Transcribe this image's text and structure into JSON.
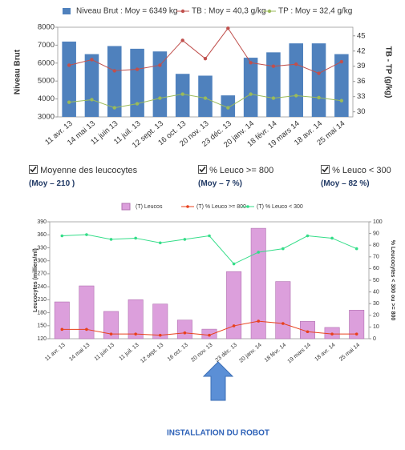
{
  "chart_data": [
    {
      "type": "combo",
      "categories": [
        "11 avr. 13",
        "14 mai 13",
        "11 juin 13",
        "11 juil. 13",
        "12 sept. 13",
        "16 oct. 13",
        "20 nov. 13",
        "23 déc. 13",
        "20 janv. 14",
        "18 févr. 14",
        "19 mars 14",
        "18 avr. 14",
        "25 mai 14"
      ],
      "y_label": "Niveau Brut",
      "y2_label": "TB - TP (g/kg)",
      "ylim": [
        3000,
        8000
      ],
      "yticks": [
        3000,
        4000,
        5000,
        6000,
        7000,
        8000
      ],
      "y2lim": [
        29,
        46.7
      ],
      "y2ticks": [
        30,
        33,
        36,
        39,
        42,
        45
      ],
      "grid": false,
      "series": [
        {
          "name": "Niveau Brut : Moy = 6349 kg",
          "type": "bar",
          "color": "#4f81bd",
          "values": [
            7200,
            6500,
            6950,
            6800,
            6650,
            5400,
            5300,
            4200,
            6300,
            6600,
            7100,
            7100,
            6500
          ]
        },
        {
          "name": "TB : Moy = 40,3 g/kg",
          "type": "line",
          "axis": "y2",
          "color": "#c0504d",
          "values": [
            39.2,
            40.3,
            38.1,
            38.4,
            39.2,
            44.1,
            40.5,
            46.5,
            39.7,
            39.0,
            39.4,
            37.6,
            39.9
          ]
        },
        {
          "name": "TP : Moy = 32,4 g/kg",
          "type": "line",
          "axis": "y2",
          "color": "#9bbb59",
          "values": [
            31.9,
            32.4,
            30.8,
            31.6,
            32.7,
            33.5,
            32.7,
            30.8,
            33.5,
            32.7,
            33.2,
            32.8,
            32.2
          ]
        }
      ]
    },
    {
      "type": "combo",
      "categories": [
        "11 avr. 13",
        "14 mai 13",
        "11 juin 13",
        "11 juil. 13",
        "12 sept. 13",
        "16 oct. 13",
        "20 nov. 13",
        "23 déc. 13",
        "20 janv. 14",
        "18 févr. 14",
        "19 mars 14",
        "18 avr. 14",
        "25 mai 14"
      ],
      "y_label": "Leucocytes (milliers/ml)",
      "y2_label": "% Leucocytes < 300 ou >= 800",
      "ylim": [
        120,
        390
      ],
      "yticks": [
        120,
        150,
        180,
        210,
        240,
        270,
        300,
        330,
        360,
        390
      ],
      "y2lim": [
        0,
        100
      ],
      "y2ticks": [
        0,
        10,
        20,
        30,
        40,
        50,
        60,
        70,
        80,
        90,
        100
      ],
      "grid": false,
      "series": [
        {
          "name": "(T) Leucos",
          "type": "bar",
          "color": "#dc9fdc",
          "values": [
            205,
            242,
            183,
            210,
            200,
            163,
            142,
            275,
            375,
            252,
            160,
            146,
            186
          ]
        },
        {
          "name": "(T) % Leuco >= 800",
          "type": "line",
          "axis": "y2",
          "color": "#e8401c",
          "values": [
            8,
            8,
            4,
            4,
            3,
            5,
            3,
            11,
            15,
            13,
            6,
            4,
            4
          ]
        },
        {
          "name": "(T) % Leuco < 300",
          "type": "line",
          "axis": "y2",
          "color": "#33dd88",
          "values": [
            88,
            89,
            85,
            86,
            82,
            85,
            88,
            64,
            74,
            77,
            88,
            86,
            77
          ]
        }
      ]
    }
  ],
  "checkboxes": [
    {
      "label": "Moyenne des leucocytes",
      "mean": "(Moy – 210 )"
    },
    {
      "label": "% Leuco >= 800",
      "mean": "(Moy – 7 %)"
    },
    {
      "label": "% Leuco < 300",
      "mean": "(Moy – 82 %)"
    }
  ],
  "annotation": "INSTALLATION DU ROBOT"
}
